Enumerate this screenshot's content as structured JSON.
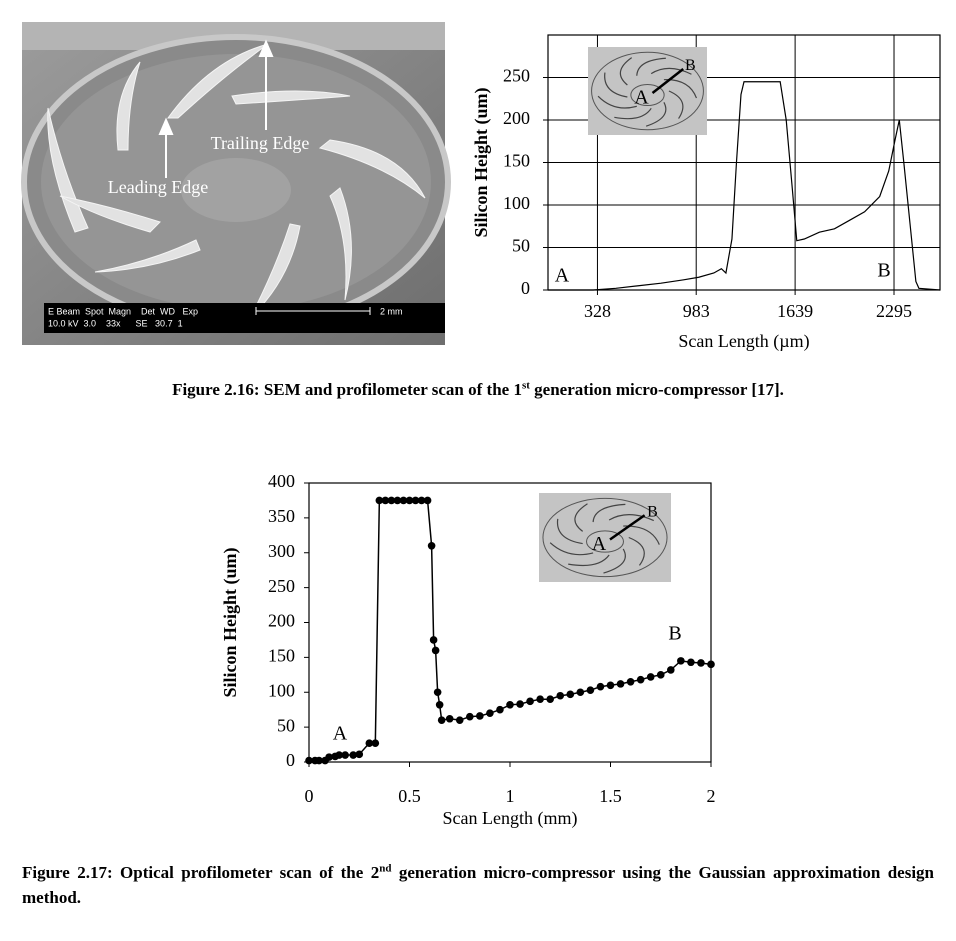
{
  "sem_image": {
    "labels": [
      "Trailing Edge",
      "Leading Edge"
    ],
    "info_bar": {
      "header": "E Beam  Spot  Magn    Det  WD   Exp",
      "values": "10.0 kV  3.0    33x      SE   30.7  1",
      "scale": "2 mm"
    }
  },
  "chart_data": [
    {
      "type": "line",
      "ylabel": "Silicon Height (um)",
      "xlabel": "Scan Length (µm)",
      "xlim": [
        0,
        2600
      ],
      "ylim": [
        0,
        300
      ],
      "xticks": [
        328,
        983,
        1639,
        2295
      ],
      "yticks": [
        0,
        50,
        100,
        150,
        200,
        250
      ],
      "grid": true,
      "markers": false,
      "annotations": [
        "A",
        "B"
      ],
      "inset_labels": [
        "A",
        "B"
      ],
      "x": [
        0,
        300,
        450,
        600,
        750,
        900,
        1000,
        1100,
        1150,
        1180,
        1220,
        1250,
        1280,
        1300,
        1540,
        1580,
        1620,
        1650,
        1700,
        1800,
        1900,
        2000,
        2100,
        2200,
        2260,
        2300,
        2330,
        2360,
        2400,
        2440,
        2460,
        2600
      ],
      "series": [
        {
          "color": "#000000",
          "values": [
            0,
            0,
            2,
            5,
            8,
            12,
            15,
            20,
            25,
            20,
            60,
            150,
            230,
            245,
            245,
            200,
            120,
            58,
            60,
            68,
            72,
            82,
            92,
            110,
            140,
            175,
            200,
            150,
            80,
            10,
            2,
            0
          ]
        }
      ]
    },
    {
      "type": "line",
      "ylabel": "Silicon Height (um)",
      "xlabel": "Scan Length (mm)",
      "xlim": [
        0,
        2
      ],
      "ylim": [
        0,
        400
      ],
      "xticks": [
        0,
        0.5,
        1,
        1.5,
        2
      ],
      "yticks": [
        0,
        50,
        100,
        150,
        200,
        250,
        300,
        350,
        400
      ],
      "grid": false,
      "markers": true,
      "annotations": [
        "A",
        "B"
      ],
      "inset_labels": [
        "A",
        "B"
      ],
      "x": [
        0,
        0.03,
        0.05,
        0.08,
        0.1,
        0.13,
        0.15,
        0.18,
        0.22,
        0.25,
        0.3,
        0.33,
        0.35,
        0.38,
        0.41,
        0.44,
        0.47,
        0.5,
        0.53,
        0.56,
        0.59,
        0.61,
        0.62,
        0.63,
        0.64,
        0.65,
        0.66,
        0.7,
        0.75,
        0.8,
        0.85,
        0.9,
        0.95,
        1,
        1.05,
        1.1,
        1.15,
        1.2,
        1.25,
        1.3,
        1.35,
        1.4,
        1.45,
        1.5,
        1.55,
        1.6,
        1.65,
        1.7,
        1.75,
        1.8,
        1.85,
        1.9,
        1.95,
        2
      ],
      "series": [
        {
          "color": "#000000",
          "values": [
            2,
            2,
            2,
            2,
            7,
            8,
            10,
            10,
            10,
            11,
            27,
            27,
            375,
            375,
            375,
            375,
            375,
            375,
            375,
            375,
            375,
            310,
            175,
            160,
            100,
            82,
            60,
            62,
            60,
            65,
            66,
            70,
            75,
            82,
            83,
            87,
            90,
            90,
            95,
            97,
            100,
            103,
            108,
            110,
            112,
            115,
            118,
            122,
            125,
            132,
            145,
            143,
            142,
            140
          ]
        }
      ]
    }
  ],
  "captions": [
    [
      "Figure 2.16: SEM and profilometer scan of the 1",
      "st",
      " generation micro-compressor [17]."
    ],
    [
      "Figure 2.17: Optical profilometer scan of the 2",
      "nd",
      " generation micro-compressor using the Gaussian approximation design method."
    ]
  ]
}
